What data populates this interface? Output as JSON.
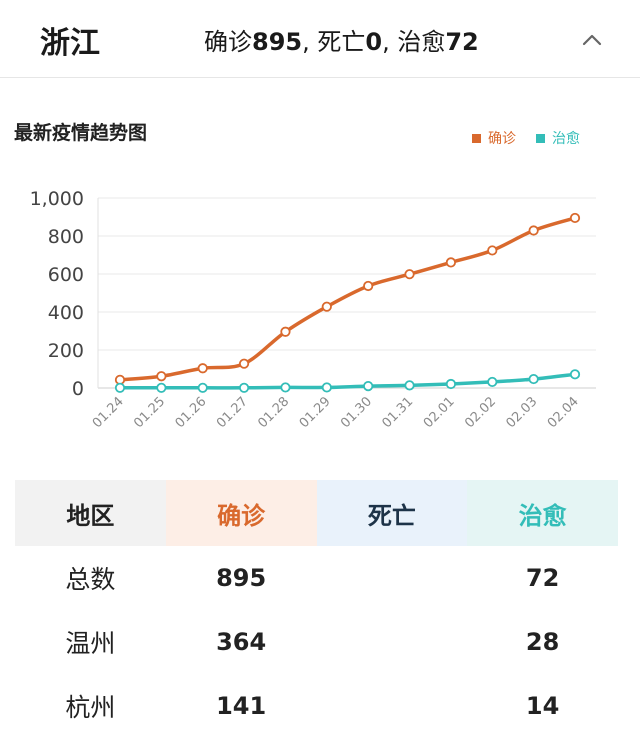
{
  "header": {
    "province": "浙江",
    "confirmed_label": "确诊",
    "confirmed_value": "895",
    "dead_label": ", 死亡",
    "dead_value": "0",
    "healed_label": ", 治愈",
    "healed_value": "72"
  },
  "chart": {
    "title": "最新疫情趋势图",
    "legend": [
      {
        "name": "确诊",
        "color": "#d9692d"
      },
      {
        "name": "治愈",
        "color": "#33bdb8"
      }
    ]
  },
  "chart_data": {
    "type": "line",
    "title": "最新疫情趋势图",
    "x": [
      "01.24",
      "01.25",
      "01.26",
      "01.27",
      "01.28",
      "01.29",
      "01.30",
      "01.31",
      "02.01",
      "02.02",
      "02.03",
      "02.04"
    ],
    "series": [
      {
        "name": "确诊",
        "color": "#d9692d",
        "values": [
          43,
          62,
          104,
          128,
          296,
          428,
          537,
          599,
          661,
          724,
          829,
          895
        ]
      },
      {
        "name": "治愈",
        "color": "#33bdb8",
        "values": [
          1,
          1,
          1,
          1,
          3,
          3,
          10,
          14,
          21,
          32,
          47,
          72
        ]
      }
    ],
    "y_ticks": [
      "0",
      "200",
      "400",
      "600",
      "800",
      "1,000"
    ],
    "ylim": [
      0,
      1000
    ],
    "grid": true,
    "legend_position": "top-right"
  },
  "table": {
    "headers": {
      "region": "地区",
      "confirmed": "确诊",
      "dead": "死亡",
      "healed": "治愈"
    },
    "rows": [
      {
        "region": "总数",
        "confirmed": "895",
        "dead": "",
        "healed": "72"
      },
      {
        "region": "温州",
        "confirmed": "364",
        "dead": "",
        "healed": "28"
      },
      {
        "region": "杭州",
        "confirmed": "141",
        "dead": "",
        "healed": "14"
      }
    ]
  },
  "icons": {
    "collapse": "chevron-up-icon"
  }
}
